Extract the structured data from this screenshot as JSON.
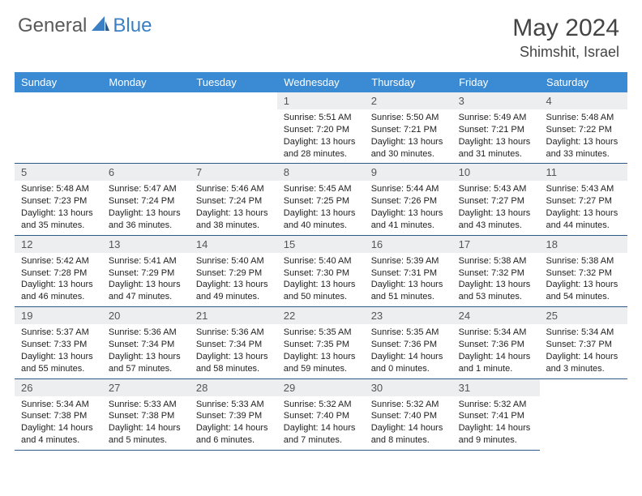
{
  "brand": {
    "part1": "General",
    "part2": "Blue"
  },
  "title": "May 2024",
  "location": "Shimshit, Israel",
  "colors": {
    "header_bg": "#3b8bd4",
    "header_text": "#ffffff",
    "daynum_bg": "#eceef0",
    "row_border": "#2c5a8a",
    "brand_gray": "#5a5a5a",
    "brand_blue": "#3b7fc4"
  },
  "weekday_labels": [
    "Sunday",
    "Monday",
    "Tuesday",
    "Wednesday",
    "Thursday",
    "Friday",
    "Saturday"
  ],
  "first_weekday_index": 3,
  "days": [
    {
      "n": 1,
      "sunrise": "5:51 AM",
      "sunset": "7:20 PM",
      "daylight": "13 hours and 28 minutes."
    },
    {
      "n": 2,
      "sunrise": "5:50 AM",
      "sunset": "7:21 PM",
      "daylight": "13 hours and 30 minutes."
    },
    {
      "n": 3,
      "sunrise": "5:49 AM",
      "sunset": "7:21 PM",
      "daylight": "13 hours and 31 minutes."
    },
    {
      "n": 4,
      "sunrise": "5:48 AM",
      "sunset": "7:22 PM",
      "daylight": "13 hours and 33 minutes."
    },
    {
      "n": 5,
      "sunrise": "5:48 AM",
      "sunset": "7:23 PM",
      "daylight": "13 hours and 35 minutes."
    },
    {
      "n": 6,
      "sunrise": "5:47 AM",
      "sunset": "7:24 PM",
      "daylight": "13 hours and 36 minutes."
    },
    {
      "n": 7,
      "sunrise": "5:46 AM",
      "sunset": "7:24 PM",
      "daylight": "13 hours and 38 minutes."
    },
    {
      "n": 8,
      "sunrise": "5:45 AM",
      "sunset": "7:25 PM",
      "daylight": "13 hours and 40 minutes."
    },
    {
      "n": 9,
      "sunrise": "5:44 AM",
      "sunset": "7:26 PM",
      "daylight": "13 hours and 41 minutes."
    },
    {
      "n": 10,
      "sunrise": "5:43 AM",
      "sunset": "7:27 PM",
      "daylight": "13 hours and 43 minutes."
    },
    {
      "n": 11,
      "sunrise": "5:43 AM",
      "sunset": "7:27 PM",
      "daylight": "13 hours and 44 minutes."
    },
    {
      "n": 12,
      "sunrise": "5:42 AM",
      "sunset": "7:28 PM",
      "daylight": "13 hours and 46 minutes."
    },
    {
      "n": 13,
      "sunrise": "5:41 AM",
      "sunset": "7:29 PM",
      "daylight": "13 hours and 47 minutes."
    },
    {
      "n": 14,
      "sunrise": "5:40 AM",
      "sunset": "7:29 PM",
      "daylight": "13 hours and 49 minutes."
    },
    {
      "n": 15,
      "sunrise": "5:40 AM",
      "sunset": "7:30 PM",
      "daylight": "13 hours and 50 minutes."
    },
    {
      "n": 16,
      "sunrise": "5:39 AM",
      "sunset": "7:31 PM",
      "daylight": "13 hours and 51 minutes."
    },
    {
      "n": 17,
      "sunrise": "5:38 AM",
      "sunset": "7:32 PM",
      "daylight": "13 hours and 53 minutes."
    },
    {
      "n": 18,
      "sunrise": "5:38 AM",
      "sunset": "7:32 PM",
      "daylight": "13 hours and 54 minutes."
    },
    {
      "n": 19,
      "sunrise": "5:37 AM",
      "sunset": "7:33 PM",
      "daylight": "13 hours and 55 minutes."
    },
    {
      "n": 20,
      "sunrise": "5:36 AM",
      "sunset": "7:34 PM",
      "daylight": "13 hours and 57 minutes."
    },
    {
      "n": 21,
      "sunrise": "5:36 AM",
      "sunset": "7:34 PM",
      "daylight": "13 hours and 58 minutes."
    },
    {
      "n": 22,
      "sunrise": "5:35 AM",
      "sunset": "7:35 PM",
      "daylight": "13 hours and 59 minutes."
    },
    {
      "n": 23,
      "sunrise": "5:35 AM",
      "sunset": "7:36 PM",
      "daylight": "14 hours and 0 minutes."
    },
    {
      "n": 24,
      "sunrise": "5:34 AM",
      "sunset": "7:36 PM",
      "daylight": "14 hours and 1 minute."
    },
    {
      "n": 25,
      "sunrise": "5:34 AM",
      "sunset": "7:37 PM",
      "daylight": "14 hours and 3 minutes."
    },
    {
      "n": 26,
      "sunrise": "5:34 AM",
      "sunset": "7:38 PM",
      "daylight": "14 hours and 4 minutes."
    },
    {
      "n": 27,
      "sunrise": "5:33 AM",
      "sunset": "7:38 PM",
      "daylight": "14 hours and 5 minutes."
    },
    {
      "n": 28,
      "sunrise": "5:33 AM",
      "sunset": "7:39 PM",
      "daylight": "14 hours and 6 minutes."
    },
    {
      "n": 29,
      "sunrise": "5:32 AM",
      "sunset": "7:40 PM",
      "daylight": "14 hours and 7 minutes."
    },
    {
      "n": 30,
      "sunrise": "5:32 AM",
      "sunset": "7:40 PM",
      "daylight": "14 hours and 8 minutes."
    },
    {
      "n": 31,
      "sunrise": "5:32 AM",
      "sunset": "7:41 PM",
      "daylight": "14 hours and 9 minutes."
    }
  ],
  "labels": {
    "sunrise": "Sunrise:",
    "sunset": "Sunset:",
    "daylight": "Daylight:"
  }
}
